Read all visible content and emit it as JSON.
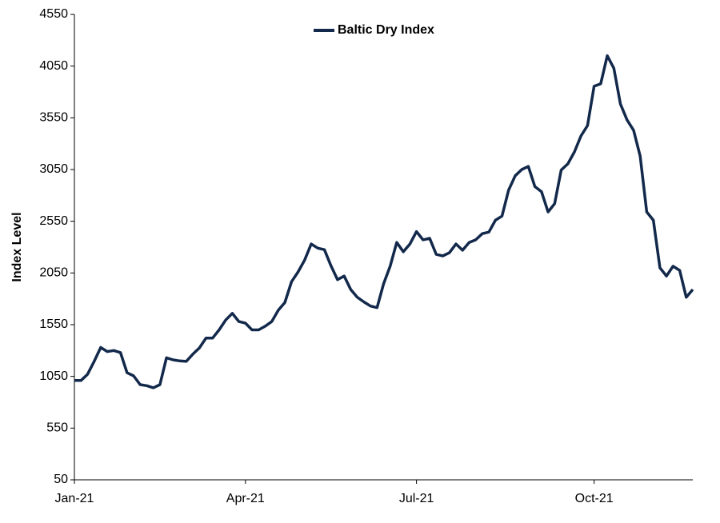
{
  "chart_data": {
    "type": "line",
    "y_label": "Index Level",
    "categories": [
      "Jan-21",
      null,
      null,
      null,
      null,
      null,
      null,
      null,
      null,
      null,
      null,
      null,
      null,
      null,
      null,
      null,
      null,
      null,
      null,
      null,
      null,
      null,
      null,
      null,
      null,
      null,
      "Apr-21",
      null,
      null,
      null,
      null,
      null,
      null,
      null,
      null,
      null,
      null,
      null,
      null,
      null,
      null,
      null,
      null,
      null,
      null,
      null,
      null,
      null,
      null,
      null,
      null,
      null,
      "Jul-21",
      null,
      null,
      null,
      null,
      null,
      null,
      null,
      null,
      null,
      null,
      null,
      null,
      null,
      null,
      null,
      null,
      null,
      null,
      null,
      null,
      null,
      null,
      null,
      null,
      null,
      null,
      "Oct-21",
      null,
      null,
      null,
      null,
      null,
      null,
      null,
      null,
      null,
      null,
      null,
      null,
      null,
      null,
      null
    ],
    "series": [
      {
        "name": "Baltic Dry Index",
        "color": "#13294b",
        "values": [
          1010,
          1010,
          1070,
          1195,
          1330,
          1290,
          1300,
          1280,
          1085,
          1055,
          970,
          960,
          940,
          970,
          1230,
          1210,
          1200,
          1195,
          1265,
          1325,
          1420,
          1420,
          1500,
          1595,
          1660,
          1580,
          1565,
          1500,
          1500,
          1535,
          1580,
          1690,
          1765,
          1965,
          2060,
          2175,
          2330,
          2290,
          2275,
          2120,
          1985,
          2020,
          1890,
          1815,
          1770,
          1730,
          1715,
          1945,
          2115,
          2345,
          2255,
          2330,
          2450,
          2370,
          2385,
          2230,
          2215,
          2245,
          2330,
          2270,
          2345,
          2370,
          2430,
          2445,
          2560,
          2600,
          2850,
          2990,
          3050,
          3080,
          2885,
          2835,
          2640,
          2720,
          3045,
          3105,
          3220,
          3375,
          3475,
          3855,
          3880,
          4150,
          4030,
          3685,
          3530,
          3430,
          3180,
          2640,
          2560,
          2100,
          2020,
          2115,
          2075,
          1815,
          1890
        ]
      }
    ],
    "ylim": [
      50,
      4550
    ],
    "yticks": [
      50,
      550,
      1050,
      1550,
      2050,
      2550,
      3050,
      3550,
      4050,
      4550
    ],
    "grid": false,
    "legend": "top"
  }
}
